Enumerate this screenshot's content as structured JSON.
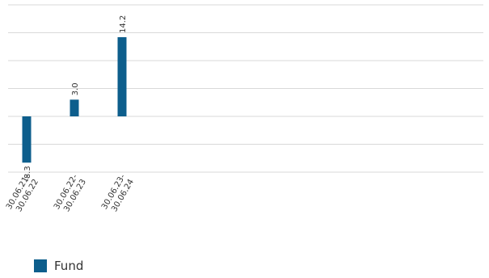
{
  "chart_data": {
    "type": "bar",
    "categories": [
      "30.06.21-\n30.06.22",
      "30.06.22-\n30.06.23",
      "30.06.23-\n30.06.24"
    ],
    "series": [
      {
        "name": "Fund",
        "values": [
          -8.3,
          3.0,
          14.2
        ],
        "color": "#0d5e8c"
      }
    ],
    "data_labels": [
      "-8.3",
      "3.0",
      "14.2"
    ],
    "ylim": [
      -10,
      20
    ],
    "grid": true,
    "legend": "bottom-left",
    "colors": {
      "grid": "#d9d9d9",
      "text": "#333333"
    }
  }
}
